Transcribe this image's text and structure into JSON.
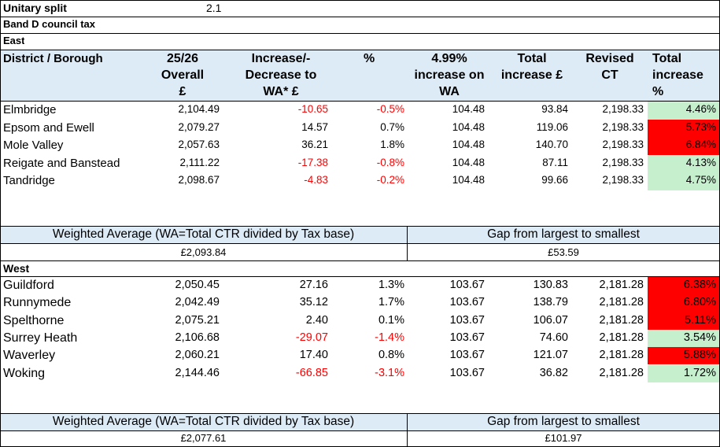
{
  "top": {
    "unitary_label": "Unitary split",
    "unitary_value": "2.1",
    "band_label": "Band D council tax",
    "east_label": "East",
    "west_label": "West"
  },
  "header": {
    "district": "District / Borough",
    "overall_l1": "25/26",
    "overall_l2": "Overall",
    "overall_l3": "£",
    "incdec_l1": "Increase/-",
    "incdec_l2": "Decrease to",
    "incdec_l3": "WA* £",
    "pct": "%",
    "inc_l1": "4.99%",
    "inc_l2": "increase on",
    "inc_l3": "WA",
    "total_l1": "Total",
    "total_l2": "increase £",
    "rev_l1": "Revised",
    "rev_l2": "CT",
    "tinc_l1": "Total",
    "tinc_l2": "increase",
    "tinc_l3": "%"
  },
  "east_rows": [
    {
      "name": "Elmbridge",
      "overall": "2,104.49",
      "incdec": "-10.65",
      "pct": "-0.5%",
      "inc": "104.48",
      "total": "93.84",
      "revised": "2,198.33",
      "tpct": "4.46%"
    },
    {
      "name": "Epsom and Ewell",
      "overall": "2,079.27",
      "incdec": "14.57",
      "pct": "0.7%",
      "inc": "104.48",
      "total": "119.06",
      "revised": "2,198.33",
      "tpct": "5.73%"
    },
    {
      "name": "Mole Valley",
      "overall": "2,057.63",
      "incdec": "36.21",
      "pct": "1.8%",
      "inc": "104.48",
      "total": "140.70",
      "revised": "2,198.33",
      "tpct": "6.84%"
    },
    {
      "name": "Reigate and Banstead",
      "overall": "2,111.22",
      "incdec": "-17.38",
      "pct": "-0.8%",
      "inc": "104.48",
      "total": "87.11",
      "revised": "2,198.33",
      "tpct": "4.13%"
    },
    {
      "name": "Tandridge",
      "overall": "2,098.67",
      "incdec": "-4.83",
      "pct": "-0.2%",
      "inc": "104.48",
      "total": "99.66",
      "revised": "2,198.33",
      "tpct": "4.75%"
    }
  ],
  "west_rows": [
    {
      "name": "Guildford",
      "overall": "2,050.45",
      "incdec": "27.16",
      "pct": "1.3%",
      "inc": "103.67",
      "total": "130.83",
      "revised": "2,181.28",
      "tpct": "6.38%"
    },
    {
      "name": "Runnymede",
      "overall": "2,042.49",
      "incdec": "35.12",
      "pct": "1.7%",
      "inc": "103.67",
      "total": "138.79",
      "revised": "2,181.28",
      "tpct": "6.80%"
    },
    {
      "name": "Spelthorne",
      "overall": "2,075.21",
      "incdec": "2.40",
      "pct": "0.1%",
      "inc": "103.67",
      "total": "106.07",
      "revised": "2,181.28",
      "tpct": "5.11%"
    },
    {
      "name": "Surrey Heath",
      "overall": "2,106.68",
      "incdec": "-29.07",
      "pct": "-1.4%",
      "inc": "103.67",
      "total": "74.60",
      "revised": "2,181.28",
      "tpct": "3.54%"
    },
    {
      "name": "Waverley",
      "overall": "2,060.21",
      "incdec": "17.40",
      "pct": "0.8%",
      "inc": "103.67",
      "total": "121.07",
      "revised": "2,181.28",
      "tpct": "5.88%"
    },
    {
      "name": "Woking",
      "overall": "2,144.46",
      "incdec": "-66.85",
      "pct": "-3.1%",
      "inc": "103.67",
      "total": "36.82",
      "revised": "2,181.28",
      "tpct": "1.72%"
    }
  ],
  "east_summary": {
    "wa_label": "Weighted Average  (WA=Total CTR divided by Tax base)",
    "wa_value": "£2,093.84",
    "gap_label": "Gap from largest to smallest",
    "gap_value": "£53.59"
  },
  "west_summary": {
    "wa_label": "Weighted Average  (WA=Total CTR divided by Tax base)",
    "wa_value": "£2,077.61",
    "gap_label": "Gap from largest to smallest",
    "gap_value": "£101.97"
  },
  "colors": {
    "header_bg": "#ddebf7",
    "summary_bg": "#ddebf7",
    "cell_red": "#ff0000",
    "cell_green": "#c6efce",
    "negative_text": "#ff0000"
  },
  "highlight": {
    "east": [
      "green",
      "red",
      "red",
      "green",
      "green"
    ],
    "west": [
      "red",
      "red",
      "red",
      "green",
      "red",
      "green"
    ]
  }
}
